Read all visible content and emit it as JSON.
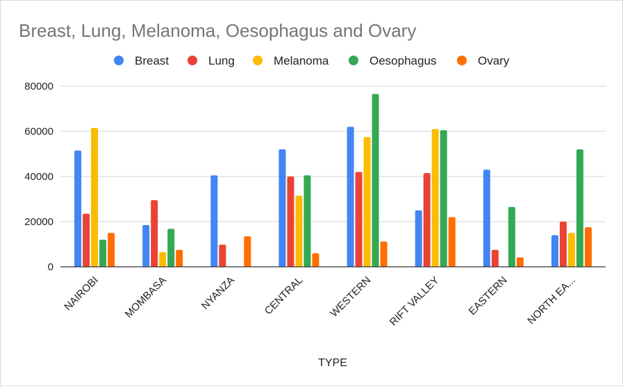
{
  "chart_data": {
    "type": "bar",
    "title": "Breast, Lung, Melanoma, Oesophagus and Ovary",
    "xlabel": "TYPE",
    "ylabel": "",
    "ylim": [
      0,
      80000
    ],
    "yticks": [
      0,
      20000,
      40000,
      60000,
      80000
    ],
    "grid": true,
    "legend_position": "top",
    "categories": [
      "NAIROBI",
      "MOMBASA",
      "NYANZA",
      "CENTRAL",
      "WESTERN",
      "RIFT VALLEY",
      "EASTERN",
      "NORTH EA..."
    ],
    "series": [
      {
        "name": "Breast",
        "color": "#4285f4",
        "values": [
          51500,
          18500,
          40500,
          52000,
          62000,
          25000,
          43000,
          14000
        ]
      },
      {
        "name": "Lung",
        "color": "#ea4335",
        "values": [
          23500,
          29500,
          9800,
          40000,
          42000,
          41500,
          7500,
          20000
        ]
      },
      {
        "name": "Melanoma",
        "color": "#fbbc04",
        "values": [
          61500,
          6500,
          0,
          31500,
          57500,
          61000,
          0,
          15000
        ]
      },
      {
        "name": "Oesophagus",
        "color": "#34a853",
        "values": [
          12000,
          16800,
          0,
          40500,
          76500,
          60500,
          26500,
          52000
        ]
      },
      {
        "name": "Ovary",
        "color": "#ff6d01",
        "values": [
          15000,
          7500,
          13500,
          6000,
          11200,
          22000,
          4200,
          17500
        ]
      }
    ]
  }
}
